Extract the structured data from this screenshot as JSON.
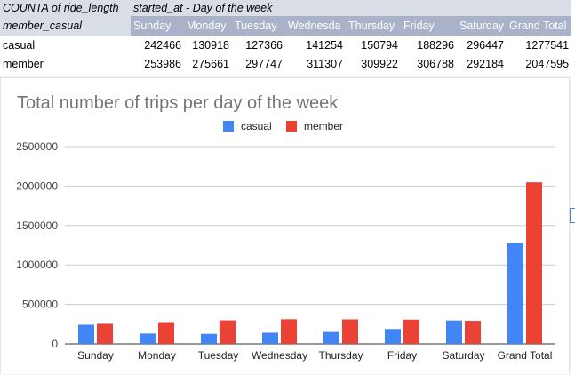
{
  "pivot": {
    "corner_label": "COUNTA of ride_length",
    "column_field_label": "started_at - Day of the week",
    "row_field_label": "member_casual",
    "columns": [
      "Sunday",
      "Monday",
      "Tuesday",
      "Wednesda",
      "Thursday",
      "Friday",
      "Saturday",
      "Grand Total"
    ],
    "rows": [
      {
        "label": "casual",
        "values": [
          "242466",
          "130918",
          "127366",
          "141254",
          "150794",
          "188296",
          "296447",
          "1277541"
        ]
      },
      {
        "label": "member",
        "values": [
          "253986",
          "275661",
          "297747",
          "311307",
          "309922",
          "306788",
          "292184",
          "2047595"
        ]
      }
    ]
  },
  "chart_data": {
    "type": "bar",
    "title": "Total number of trips per day of the week",
    "categories": [
      "Sunday",
      "Monday",
      "Tuesday",
      "Wednesday",
      "Thursday",
      "Friday",
      "Saturday",
      "Grand Total"
    ],
    "series": [
      {
        "name": "casual",
        "color": "#4285f4",
        "values": [
          242466,
          130918,
          127366,
          141254,
          150794,
          188296,
          296447,
          1277541
        ]
      },
      {
        "name": "member",
        "color": "#ea4335",
        "values": [
          253986,
          275661,
          297747,
          311307,
          309922,
          306788,
          292184,
          2047595
        ]
      }
    ],
    "ylim": [
      0,
      2500000
    ],
    "yticks": [
      "0",
      "500000",
      "1000000",
      "1500000",
      "2000000",
      "2500000"
    ],
    "grid": true,
    "legend_position": "top"
  }
}
